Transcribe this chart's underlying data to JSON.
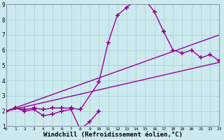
{
  "background_color": "#cceaed",
  "grid_color": "#aad4d8",
  "line_color": "#990099",
  "line_width": 1.0,
  "marker": "+",
  "marker_size": 4,
  "marker_edge_width": 1.2,
  "xlim": [
    0,
    23
  ],
  "ylim": [
    1,
    9
  ],
  "xlabel": "Windchill (Refroidissement éolien,°C)",
  "xlabel_fontsize": 6.5,
  "series": [
    {
      "x": [
        0,
        1,
        2,
        3,
        4,
        5,
        6,
        7,
        8,
        9,
        10
      ],
      "y": [
        2.0,
        2.2,
        2.0,
        2.1,
        1.7,
        1.8,
        2.0,
        2.1,
        0.8,
        1.3,
        2.0
      ]
    },
    {
      "x": [
        0,
        1,
        2,
        3,
        4,
        5,
        6,
        7,
        8,
        10,
        11,
        12,
        13,
        14,
        15,
        16,
        17
      ],
      "y": [
        2.0,
        2.2,
        2.1,
        2.2,
        2.1,
        2.2,
        2.2,
        2.2,
        2.1,
        3.9,
        6.5,
        8.3,
        8.8,
        9.3,
        9.3,
        8.5,
        7.2
      ]
    },
    {
      "x": [
        17,
        18,
        19,
        20,
        21,
        22,
        23
      ],
      "y": [
        7.2,
        6.0,
        5.8,
        6.0,
        5.5,
        5.7,
        5.3
      ]
    }
  ],
  "series_straight": [
    {
      "x": [
        0,
        23
      ],
      "y": [
        2.0,
        7.0
      ]
    },
    {
      "x": [
        0,
        23
      ],
      "y": [
        2.0,
        5.2
      ]
    }
  ],
  "xtick_labels": [
    "0",
    "1",
    "2",
    "3",
    "4",
    "5",
    "6",
    "7",
    "8",
    "9",
    "10",
    "11",
    "12",
    "13",
    "14",
    "15",
    "16",
    "17",
    "18",
    "19",
    "20",
    "21",
    "22",
    "23"
  ],
  "ytick_labels": [
    "1",
    "2",
    "3",
    "4",
    "5",
    "6",
    "7",
    "8",
    "9"
  ]
}
